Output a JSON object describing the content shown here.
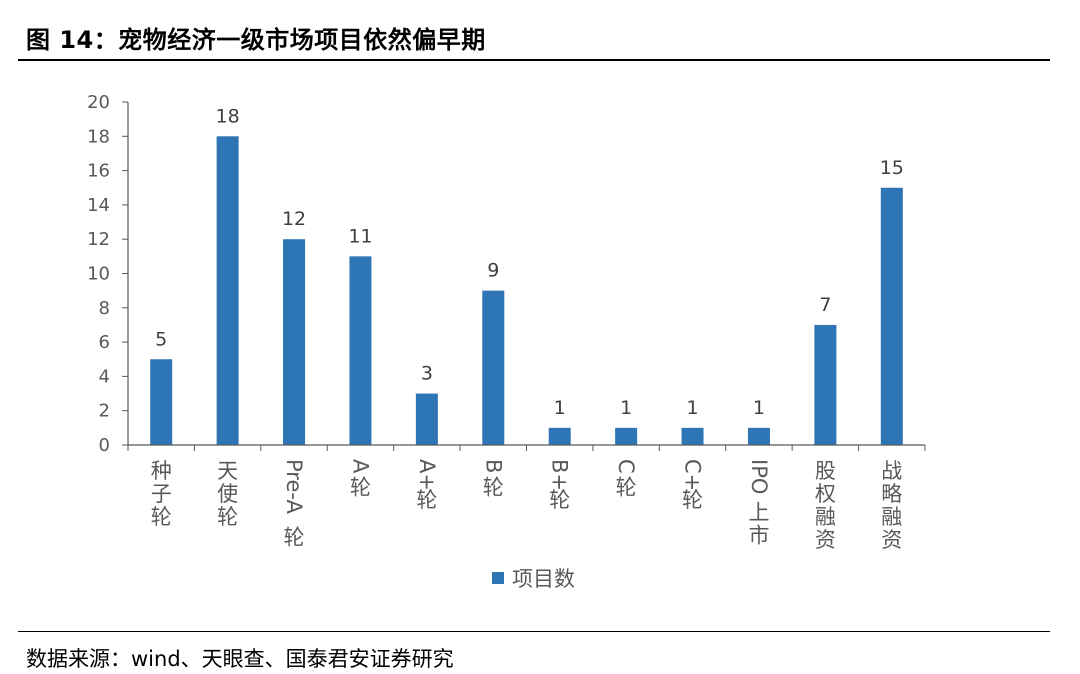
{
  "figure": {
    "title": "图 14：宠物经济一级市场项目依然偏早期",
    "source": "数据来源：wind、天眼查、国泰君安证券研究"
  },
  "colors": {
    "bar": "#2e75b6",
    "axis": "#595959",
    "text": "#595959"
  },
  "chart_data": {
    "type": "bar",
    "title": "",
    "xlabel": "",
    "ylabel": "",
    "ylim": [
      0,
      20
    ],
    "yticks": [
      0,
      2,
      4,
      6,
      8,
      10,
      12,
      14,
      16,
      18,
      20
    ],
    "categories": [
      "种子轮",
      "天使轮",
      "Pre-A轮",
      "A轮",
      "A+轮",
      "B轮",
      "B+轮",
      "C轮",
      "C+轮",
      "IPO上市",
      "股权融资",
      "战略融资"
    ],
    "category_label_lines": [
      [
        "种",
        "子",
        "轮"
      ],
      [
        "天",
        "使",
        "轮"
      ],
      [
        "Pre-A",
        "轮"
      ],
      [
        "A",
        "轮"
      ],
      [
        "A+",
        "轮"
      ],
      [
        "B",
        "轮"
      ],
      [
        "B+",
        "轮"
      ],
      [
        "C",
        "轮"
      ],
      [
        "C+",
        "轮"
      ],
      [
        "IPO",
        "上",
        "市"
      ],
      [
        "股",
        "权",
        "融",
        "资"
      ],
      [
        "战",
        "略",
        "融",
        "资"
      ]
    ],
    "series": [
      {
        "name": "项目数",
        "values": [
          5,
          18,
          12,
          11,
          3,
          9,
          1,
          1,
          1,
          1,
          7,
          15
        ]
      }
    ],
    "legend": {
      "position": "bottom-center"
    },
    "grid": false,
    "data_labels": true
  }
}
